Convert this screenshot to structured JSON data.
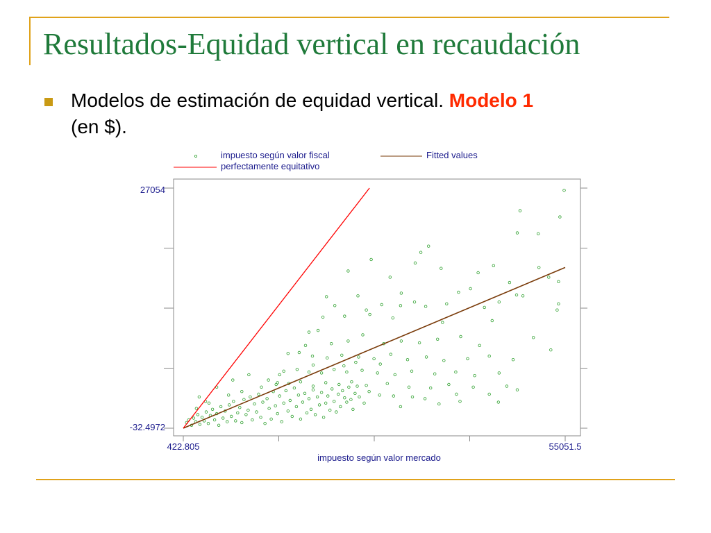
{
  "slide": {
    "title": "Resultados-Equidad vertical en recaudación",
    "bullet_main": "Modelos de estimación de equidad vertical.",
    "bullet_highlight": "Modelo 1",
    "bullet_tail": "(en $).",
    "colors": {
      "title": "#1f7a3a",
      "accent_rule": "#e0a21a",
      "highlight": "#ff2a00",
      "bullet": "#c99a14"
    }
  },
  "chart_data": {
    "type": "scatter",
    "xlabel": "impuesto según valor mercado",
    "x_ticks": [
      "422.805",
      "55051.5"
    ],
    "y_ticks": [
      "27054",
      "-32.4972"
    ],
    "xlim": [
      422.805,
      55051.5
    ],
    "ylim": [
      -32.4972,
      27054
    ],
    "legend": {
      "placement": "top",
      "entries": [
        "impuesto según valor fiscal",
        "Fitted values",
        "perfectamente equitativo"
      ]
    },
    "colors": {
      "scatter": "#2ea02e",
      "fitted": "#7a3b0a",
      "equity": "#ff0000",
      "axis": "#1a1a8c"
    },
    "fitted_line": {
      "x": [
        422.805,
        55051.5
      ],
      "y": [
        -32.4972,
        18100
      ]
    },
    "equity_line": {
      "x": [
        422.805,
        27054
      ],
      "y": [
        -32.4972,
        27054
      ]
    },
    "series": [
      {
        "name": "impuesto según valor fiscal",
        "points": [
          [
            54900,
            26800
          ],
          [
            48600,
            24500
          ],
          [
            51200,
            21900
          ],
          [
            54300,
            23800
          ],
          [
            48200,
            22000
          ],
          [
            35500,
            20500
          ],
          [
            34400,
            19800
          ],
          [
            27300,
            19000
          ],
          [
            33600,
            18600
          ],
          [
            51300,
            18100
          ],
          [
            44800,
            18300
          ],
          [
            37300,
            18000
          ],
          [
            42600,
            17500
          ],
          [
            24000,
            17700
          ],
          [
            30000,
            17000
          ],
          [
            52700,
            17000
          ],
          [
            54100,
            16500
          ],
          [
            47100,
            16400
          ],
          [
            41500,
            15700
          ],
          [
            20900,
            14800
          ],
          [
            25400,
            14900
          ],
          [
            31600,
            15200
          ],
          [
            39800,
            15300
          ],
          [
            48100,
            15000
          ],
          [
            54100,
            14000
          ],
          [
            53900,
            13300
          ],
          [
            22100,
            13800
          ],
          [
            28800,
            13900
          ],
          [
            33500,
            14200
          ],
          [
            38100,
            14000
          ],
          [
            43500,
            13600
          ],
          [
            45600,
            14200
          ],
          [
            49000,
            14900
          ],
          [
            26600,
            13300
          ],
          [
            31500,
            13800
          ],
          [
            35100,
            13700
          ],
          [
            20400,
            12500
          ],
          [
            23500,
            12600
          ],
          [
            27100,
            12800
          ],
          [
            30400,
            12400
          ],
          [
            37500,
            11900
          ],
          [
            44600,
            12100
          ],
          [
            18400,
            10800
          ],
          [
            19700,
            11000
          ],
          [
            17900,
            9300
          ],
          [
            21600,
            9500
          ],
          [
            24000,
            9800
          ],
          [
            26100,
            10500
          ],
          [
            29100,
            9500
          ],
          [
            31600,
            9800
          ],
          [
            34200,
            9600
          ],
          [
            36800,
            10000
          ],
          [
            40100,
            10300
          ],
          [
            42800,
            9300
          ],
          [
            50500,
            10200
          ],
          [
            53000,
            8800
          ],
          [
            15400,
            8400
          ],
          [
            17000,
            8500
          ],
          [
            18900,
            8100
          ],
          [
            21000,
            7900
          ],
          [
            23100,
            8200
          ],
          [
            25500,
            8000
          ],
          [
            27700,
            7800
          ],
          [
            30100,
            8300
          ],
          [
            32500,
            7700
          ],
          [
            35200,
            8000
          ],
          [
            37700,
            7600
          ],
          [
            41100,
            7800
          ],
          [
            44200,
            8100
          ],
          [
            47600,
            7700
          ],
          [
            14800,
            6400
          ],
          [
            16700,
            6600
          ],
          [
            18400,
            6300
          ],
          [
            20200,
            6200
          ],
          [
            22000,
            6600
          ],
          [
            23800,
            6300
          ],
          [
            26000,
            6500
          ],
          [
            28200,
            6200
          ],
          [
            30700,
            6000
          ],
          [
            33100,
            6400
          ],
          [
            36400,
            6100
          ],
          [
            39400,
            6300
          ],
          [
            42100,
            5900
          ],
          [
            45600,
            6200
          ],
          [
            13700,
            4900
          ],
          [
            15500,
            5000
          ],
          [
            17200,
            5200
          ],
          [
            19000,
            4700
          ],
          [
            20800,
            5100
          ],
          [
            22700,
            4900
          ],
          [
            24500,
            5200
          ],
          [
            26600,
            4800
          ],
          [
            29600,
            5000
          ],
          [
            32700,
            4600
          ],
          [
            35800,
            4500
          ],
          [
            38400,
            4900
          ],
          [
            41900,
            4600
          ],
          [
            46700,
            4700
          ],
          [
            48200,
            4300
          ],
          [
            900,
            600
          ],
          [
            1200,
            900
          ],
          [
            1600,
            300
          ],
          [
            1900,
            1100
          ],
          [
            2200,
            700
          ],
          [
            2500,
            1500
          ],
          [
            2800,
            400
          ],
          [
            3100,
            1200
          ],
          [
            3400,
            800
          ],
          [
            3700,
            1800
          ],
          [
            4000,
            500
          ],
          [
            4300,
            1400
          ],
          [
            4600,
            2100
          ],
          [
            4900,
            900
          ],
          [
            5200,
            1600
          ],
          [
            5500,
            300
          ],
          [
            5800,
            2400
          ],
          [
            6100,
            1100
          ],
          [
            6400,
            1900
          ],
          [
            6700,
            700
          ],
          [
            7000,
            2600
          ],
          [
            7300,
            1300
          ],
          [
            7600,
            3000
          ],
          [
            7900,
            800
          ],
          [
            8200,
            1700
          ],
          [
            8500,
            2300
          ],
          [
            8800,
            600
          ],
          [
            9100,
            3200
          ],
          [
            9400,
            1500
          ],
          [
            9700,
            2000
          ],
          [
            10000,
            3500
          ],
          [
            10300,
            900
          ],
          [
            10600,
            2700
          ],
          [
            10900,
            1800
          ],
          [
            11200,
            3800
          ],
          [
            11500,
            1200
          ],
          [
            11800,
            2900
          ],
          [
            12100,
            500
          ],
          [
            12400,
            3300
          ],
          [
            12700,
            2200
          ],
          [
            13000,
            1000
          ],
          [
            13300,
            4100
          ],
          [
            13600,
            2500
          ],
          [
            13900,
            1600
          ],
          [
            14200,
            3600
          ],
          [
            14500,
            700
          ],
          [
            14800,
            2800
          ],
          [
            15100,
            4200
          ],
          [
            15400,
            1900
          ],
          [
            15700,
            3100
          ],
          [
            16000,
            1300
          ],
          [
            16300,
            4500
          ],
          [
            16600,
            2400
          ],
          [
            16900,
            3700
          ],
          [
            17200,
            1000
          ],
          [
            17500,
            2900
          ],
          [
            17800,
            3900
          ],
          [
            18100,
            1700
          ],
          [
            18400,
            3300
          ],
          [
            18700,
            2100
          ],
          [
            19000,
            4300
          ],
          [
            19300,
            1500
          ],
          [
            19600,
            3500
          ],
          [
            19900,
            2600
          ],
          [
            20200,
            4000
          ],
          [
            20500,
            1200
          ],
          [
            20800,
            2800
          ],
          [
            21100,
            3600
          ],
          [
            21400,
            2000
          ],
          [
            21700,
            4400
          ],
          [
            22000,
            3000
          ],
          [
            22300,
            1800
          ],
          [
            22600,
            3800
          ],
          [
            22900,
            2400
          ],
          [
            23200,
            4200
          ],
          [
            23500,
            3400
          ],
          [
            23800,
            2900
          ],
          [
            24100,
            4600
          ],
          [
            24400,
            3200
          ],
          [
            24700,
            2100
          ],
          [
            25000,
            3900
          ],
          [
            25300,
            4700
          ],
          [
            25600,
            3500
          ],
          [
            26300,
            2800
          ],
          [
            27000,
            4100
          ],
          [
            28500,
            3700
          ],
          [
            30500,
            3600
          ],
          [
            31500,
            2400
          ],
          [
            33200,
            3500
          ],
          [
            35000,
            3300
          ],
          [
            37000,
            2700
          ],
          [
            39500,
            3800
          ],
          [
            40000,
            3000
          ],
          [
            44200,
            3800
          ],
          [
            45500,
            2900
          ],
          [
            2700,
            3500
          ],
          [
            3600,
            3000
          ],
          [
            4100,
            2800
          ],
          [
            2300,
            2200
          ],
          [
            6900,
            3700
          ],
          [
            8800,
            4100
          ],
          [
            11600,
            4600
          ],
          [
            13900,
            5100
          ],
          [
            7500,
            5400
          ],
          [
            9800,
            6000
          ],
          [
            12600,
            5400
          ],
          [
            14200,
            6000
          ],
          [
            5200,
            4600
          ],
          [
            19000,
            7100
          ],
          [
            23400,
            7000
          ],
          [
            25100,
            7400
          ],
          [
            28600,
            7200
          ]
        ]
      }
    ]
  }
}
